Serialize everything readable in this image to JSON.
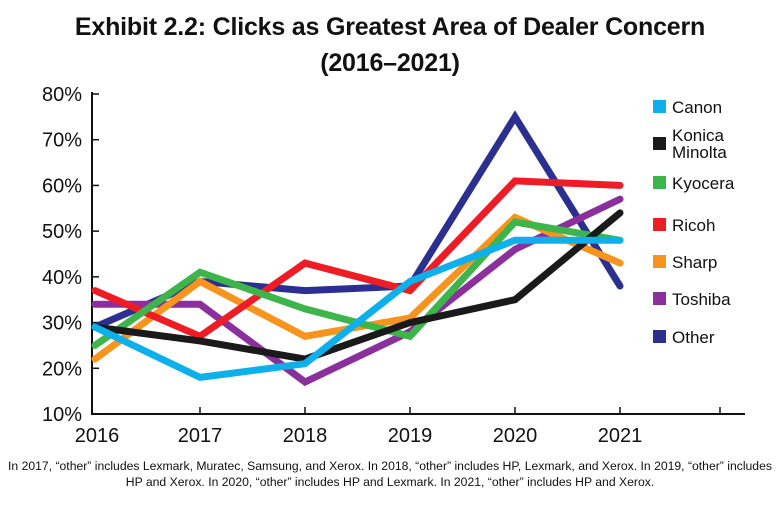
{
  "title_line1": "Exhibit 2.2: Clicks as Greatest Area of Dealer Concern",
  "title_line2": "(2016–2021)",
  "footnote": "In 2017, “other” includes Lexmark, Muratec, Samsung, and Xerox. In 2018, “other” includes HP, Lexmark, and Xerox. In 2019, “other” includes HP and Xerox. In 2020, “other” includes HP and Lexmark. In 2021, “other” includes HP and Xerox.",
  "chart_data": {
    "type": "line",
    "title": "Exhibit 2.2: Clicks as Greatest Area of Dealer Concern (2016–2021)",
    "x": [
      "2016",
      "2017",
      "2018",
      "2019",
      "2020",
      "2021"
    ],
    "yticks": [
      "10%",
      "20%",
      "30%",
      "40%",
      "50%",
      "60%",
      "70%",
      "80%"
    ],
    "ylim": [
      10,
      80
    ],
    "unit": "%",
    "legend_position": "right",
    "series": [
      {
        "name": "Other",
        "color": "#2b2f8f",
        "values": [
          29,
          39,
          37,
          38,
          75,
          38
        ]
      },
      {
        "name": "Toshiba",
        "color": "#8b2f9c",
        "values": [
          34,
          34,
          17,
          28,
          46,
          57
        ]
      },
      {
        "name": "Sharp",
        "color": "#f7941d",
        "values": [
          22,
          39,
          27,
          31,
          53,
          43
        ]
      },
      {
        "name": "Ricoh",
        "color": "#ee1c25",
        "values": [
          37,
          27,
          43,
          37,
          61,
          60
        ]
      },
      {
        "name": "Kyocera",
        "color": "#3db54a",
        "values": [
          25,
          41,
          33,
          27,
          52,
          48
        ]
      },
      {
        "name": "Konica Minolta",
        "color": "#1a1a1a",
        "values": [
          29,
          26,
          22,
          30,
          35,
          54
        ]
      },
      {
        "name": "Canon",
        "color": "#0eb0ec",
        "values": [
          29,
          18,
          21,
          39,
          48,
          48
        ]
      }
    ],
    "legend": [
      {
        "name": "Canon",
        "lines": [
          "Canon"
        ],
        "color": "#0eb0ec"
      },
      {
        "name": "Konica Minolta",
        "lines": [
          "Konica",
          "Minolta"
        ],
        "color": "#1a1a1a"
      },
      {
        "name": "Kyocera",
        "lines": [
          "Kyocera"
        ],
        "color": "#3db54a"
      },
      {
        "name": "Ricoh",
        "lines": [
          "Ricoh"
        ],
        "color": "#ee1c25"
      },
      {
        "name": "Sharp",
        "lines": [
          "Sharp"
        ],
        "color": "#f7941d"
      },
      {
        "name": "Toshiba",
        "lines": [
          "Toshiba"
        ],
        "color": "#8b2f9c"
      },
      {
        "name": "Other",
        "lines": [
          "Other"
        ],
        "color": "#2b2f8f"
      }
    ]
  }
}
